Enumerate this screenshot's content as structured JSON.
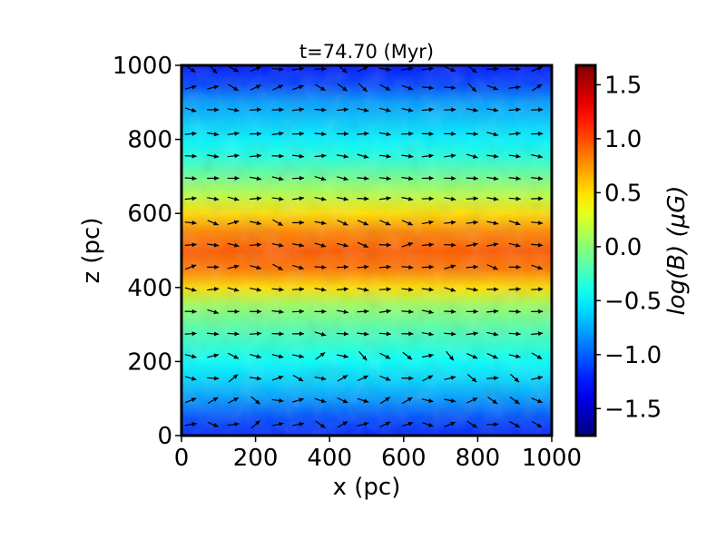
{
  "chart_data": {
    "type": "heatmap",
    "title": "t=74.70 (Myr)",
    "xlabel": "x (pc)",
    "ylabel": "z (pc)",
    "xlim": [
      0,
      1000
    ],
    "ylim": [
      0,
      1000
    ],
    "x_ticks": [
      "0",
      "200",
      "400",
      "600",
      "800",
      "1000"
    ],
    "y_ticks": [
      "0",
      "200",
      "400",
      "600",
      "800",
      "1000"
    ],
    "colorbar": {
      "label": "log(B) (μG)",
      "colormap": "jet",
      "range": [
        -1.75,
        1.68
      ],
      "ticks": [
        "1.5",
        "1.0",
        "0.5",
        "0.0",
        "−0.5",
        "−1.0",
        "−1.5"
      ],
      "tick_values": [
        1.5,
        1.0,
        0.5,
        0.0,
        -0.5,
        -1.0,
        -1.5
      ]
    },
    "field_profile": {
      "z": [
        0,
        50,
        100,
        150,
        200,
        250,
        300,
        350,
        400,
        450,
        500,
        550,
        600,
        650,
        700,
        750,
        800,
        850,
        900,
        950,
        1000
      ],
      "log_b": [
        -1.2,
        -1.05,
        -0.8,
        -0.6,
        -0.45,
        -0.3,
        -0.15,
        0.05,
        0.5,
        0.85,
        0.95,
        0.8,
        0.5,
        0.15,
        -0.1,
        -0.35,
        -0.5,
        -0.65,
        -0.8,
        -1.1,
        -1.25
      ]
    },
    "vector_field": {
      "description_type": "magnetic field direction arrows",
      "grid_x": [
        25,
        85,
        140,
        200,
        260,
        315,
        375,
        435,
        490,
        550,
        610,
        665,
        725,
        785,
        840,
        900,
        960
      ],
      "grid_z": [
        30,
        95,
        155,
        215,
        275,
        335,
        395,
        455,
        515,
        575,
        640,
        695,
        755,
        815,
        880,
        940,
        990
      ]
    }
  }
}
